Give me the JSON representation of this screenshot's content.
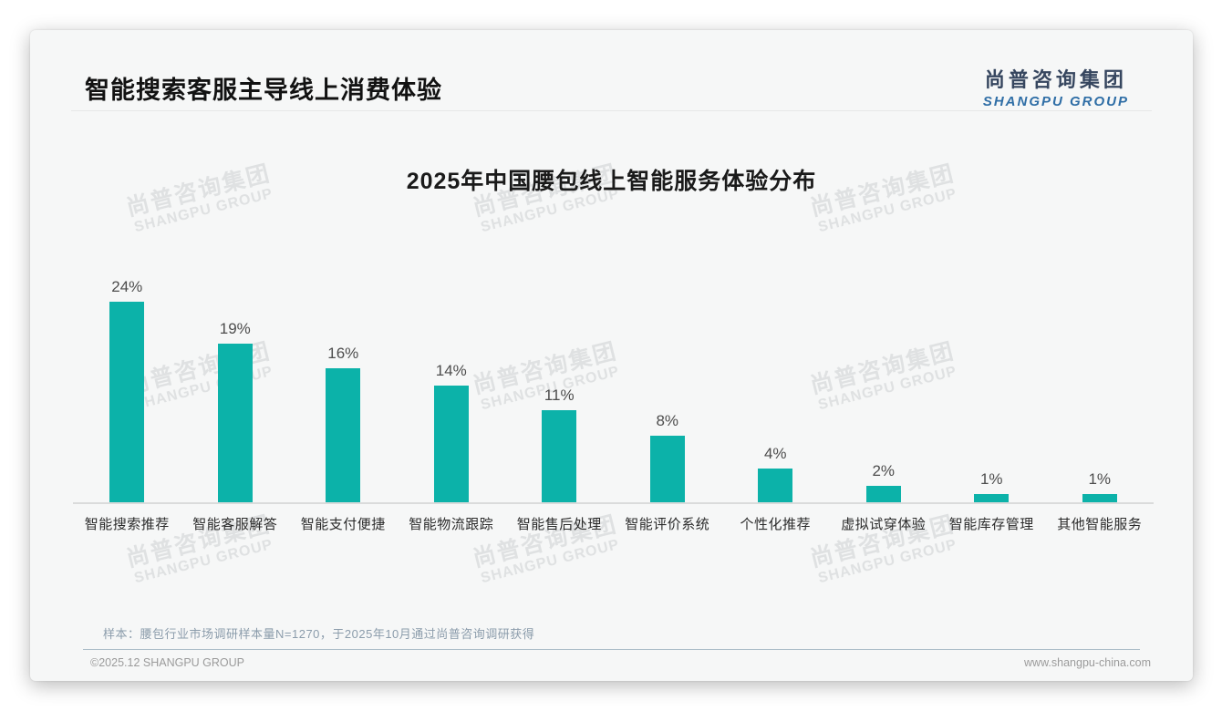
{
  "header": {
    "title": "智能搜索客服主导线上消费体验",
    "logo": {
      "cn": "尚普咨询集团",
      "en": "SHANGPU GROUP"
    }
  },
  "chart_data": {
    "type": "bar",
    "title": "2025年中国腰包线上智能服务体验分布",
    "categories": [
      "智能搜索推荐",
      "智能客服解答",
      "智能支付便捷",
      "智能物流跟踪",
      "智能售后处理",
      "智能评价系统",
      "个性化推荐",
      "虚拟试穿体验",
      "智能库存管理",
      "其他智能服务"
    ],
    "values": [
      24,
      19,
      16,
      14,
      11,
      8,
      4,
      2,
      1,
      1
    ],
    "value_labels": [
      "24%",
      "19%",
      "16%",
      "14%",
      "11%",
      "8%",
      "4%",
      "2%",
      "1%",
      "1%"
    ],
    "unit": "%",
    "bar_color": "#0cb2a9",
    "ylim": [
      0,
      26
    ],
    "grid": false,
    "legend": "none",
    "xlabel": "",
    "ylabel": ""
  },
  "watermark": {
    "cn": "尚普咨询集团",
    "en": "SHANGPU GROUP"
  },
  "footnote": "样本：腰包行业市场调研样本量N=1270，于2025年10月通过尚普咨询调研获得",
  "footer": {
    "copyright": "©2025.12 SHANGPU GROUP",
    "website": "www.shangpu-china.com"
  }
}
